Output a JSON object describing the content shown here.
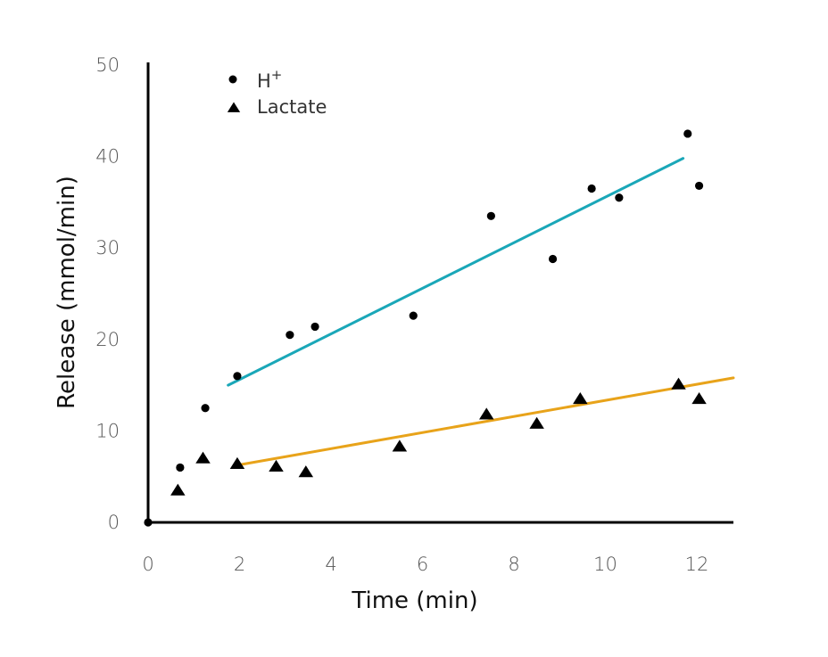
{
  "chart_data": {
    "type": "scatter",
    "title": "",
    "xlabel": "Time (min)",
    "ylabel": "Release (mmol/min)",
    "xlim": [
      0,
      12.8
    ],
    "ylim": [
      0,
      50
    ],
    "x_ticks": [
      0,
      2,
      4,
      6,
      8,
      10,
      12
    ],
    "y_ticks": [
      0,
      10,
      20,
      30,
      40,
      50
    ],
    "grid": false,
    "legend_position": "top-left",
    "series": [
      {
        "name": "H",
        "name_superscript": "+",
        "marker": "circle",
        "color": "#000000",
        "points": [
          {
            "x": 0.0,
            "y": 0.0
          },
          {
            "x": 0.7,
            "y": 6.0
          },
          {
            "x": 1.25,
            "y": 12.5
          },
          {
            "x": 1.95,
            "y": 16.0
          },
          {
            "x": 3.1,
            "y": 20.5
          },
          {
            "x": 3.65,
            "y": 21.4
          },
          {
            "x": 5.8,
            "y": 22.6
          },
          {
            "x": 7.5,
            "y": 33.5
          },
          {
            "x": 8.85,
            "y": 28.8
          },
          {
            "x": 9.7,
            "y": 36.5
          },
          {
            "x": 10.3,
            "y": 35.5
          },
          {
            "x": 11.8,
            "y": 42.5
          },
          {
            "x": 12.05,
            "y": 36.8
          }
        ],
        "trendline": {
          "color": "#1aa7b8",
          "from": [
            1.75,
            15.0
          ],
          "to": [
            11.7,
            39.8
          ]
        }
      },
      {
        "name": "Lactate",
        "marker": "triangle",
        "color": "#000000",
        "points": [
          {
            "x": 0.65,
            "y": 3.5
          },
          {
            "x": 1.2,
            "y": 7.0
          },
          {
            "x": 1.95,
            "y": 6.4
          },
          {
            "x": 2.8,
            "y": 6.1
          },
          {
            "x": 3.45,
            "y": 5.5
          },
          {
            "x": 5.5,
            "y": 8.3
          },
          {
            "x": 7.4,
            "y": 11.8
          },
          {
            "x": 8.5,
            "y": 10.8
          },
          {
            "x": 9.45,
            "y": 13.5
          },
          {
            "x": 11.6,
            "y": 15.1
          },
          {
            "x": 12.05,
            "y": 13.5
          }
        ],
        "trendline": {
          "color": "#e8a31a",
          "from": [
            2.0,
            6.3
          ],
          "to": [
            12.8,
            15.8
          ]
        }
      }
    ]
  }
}
